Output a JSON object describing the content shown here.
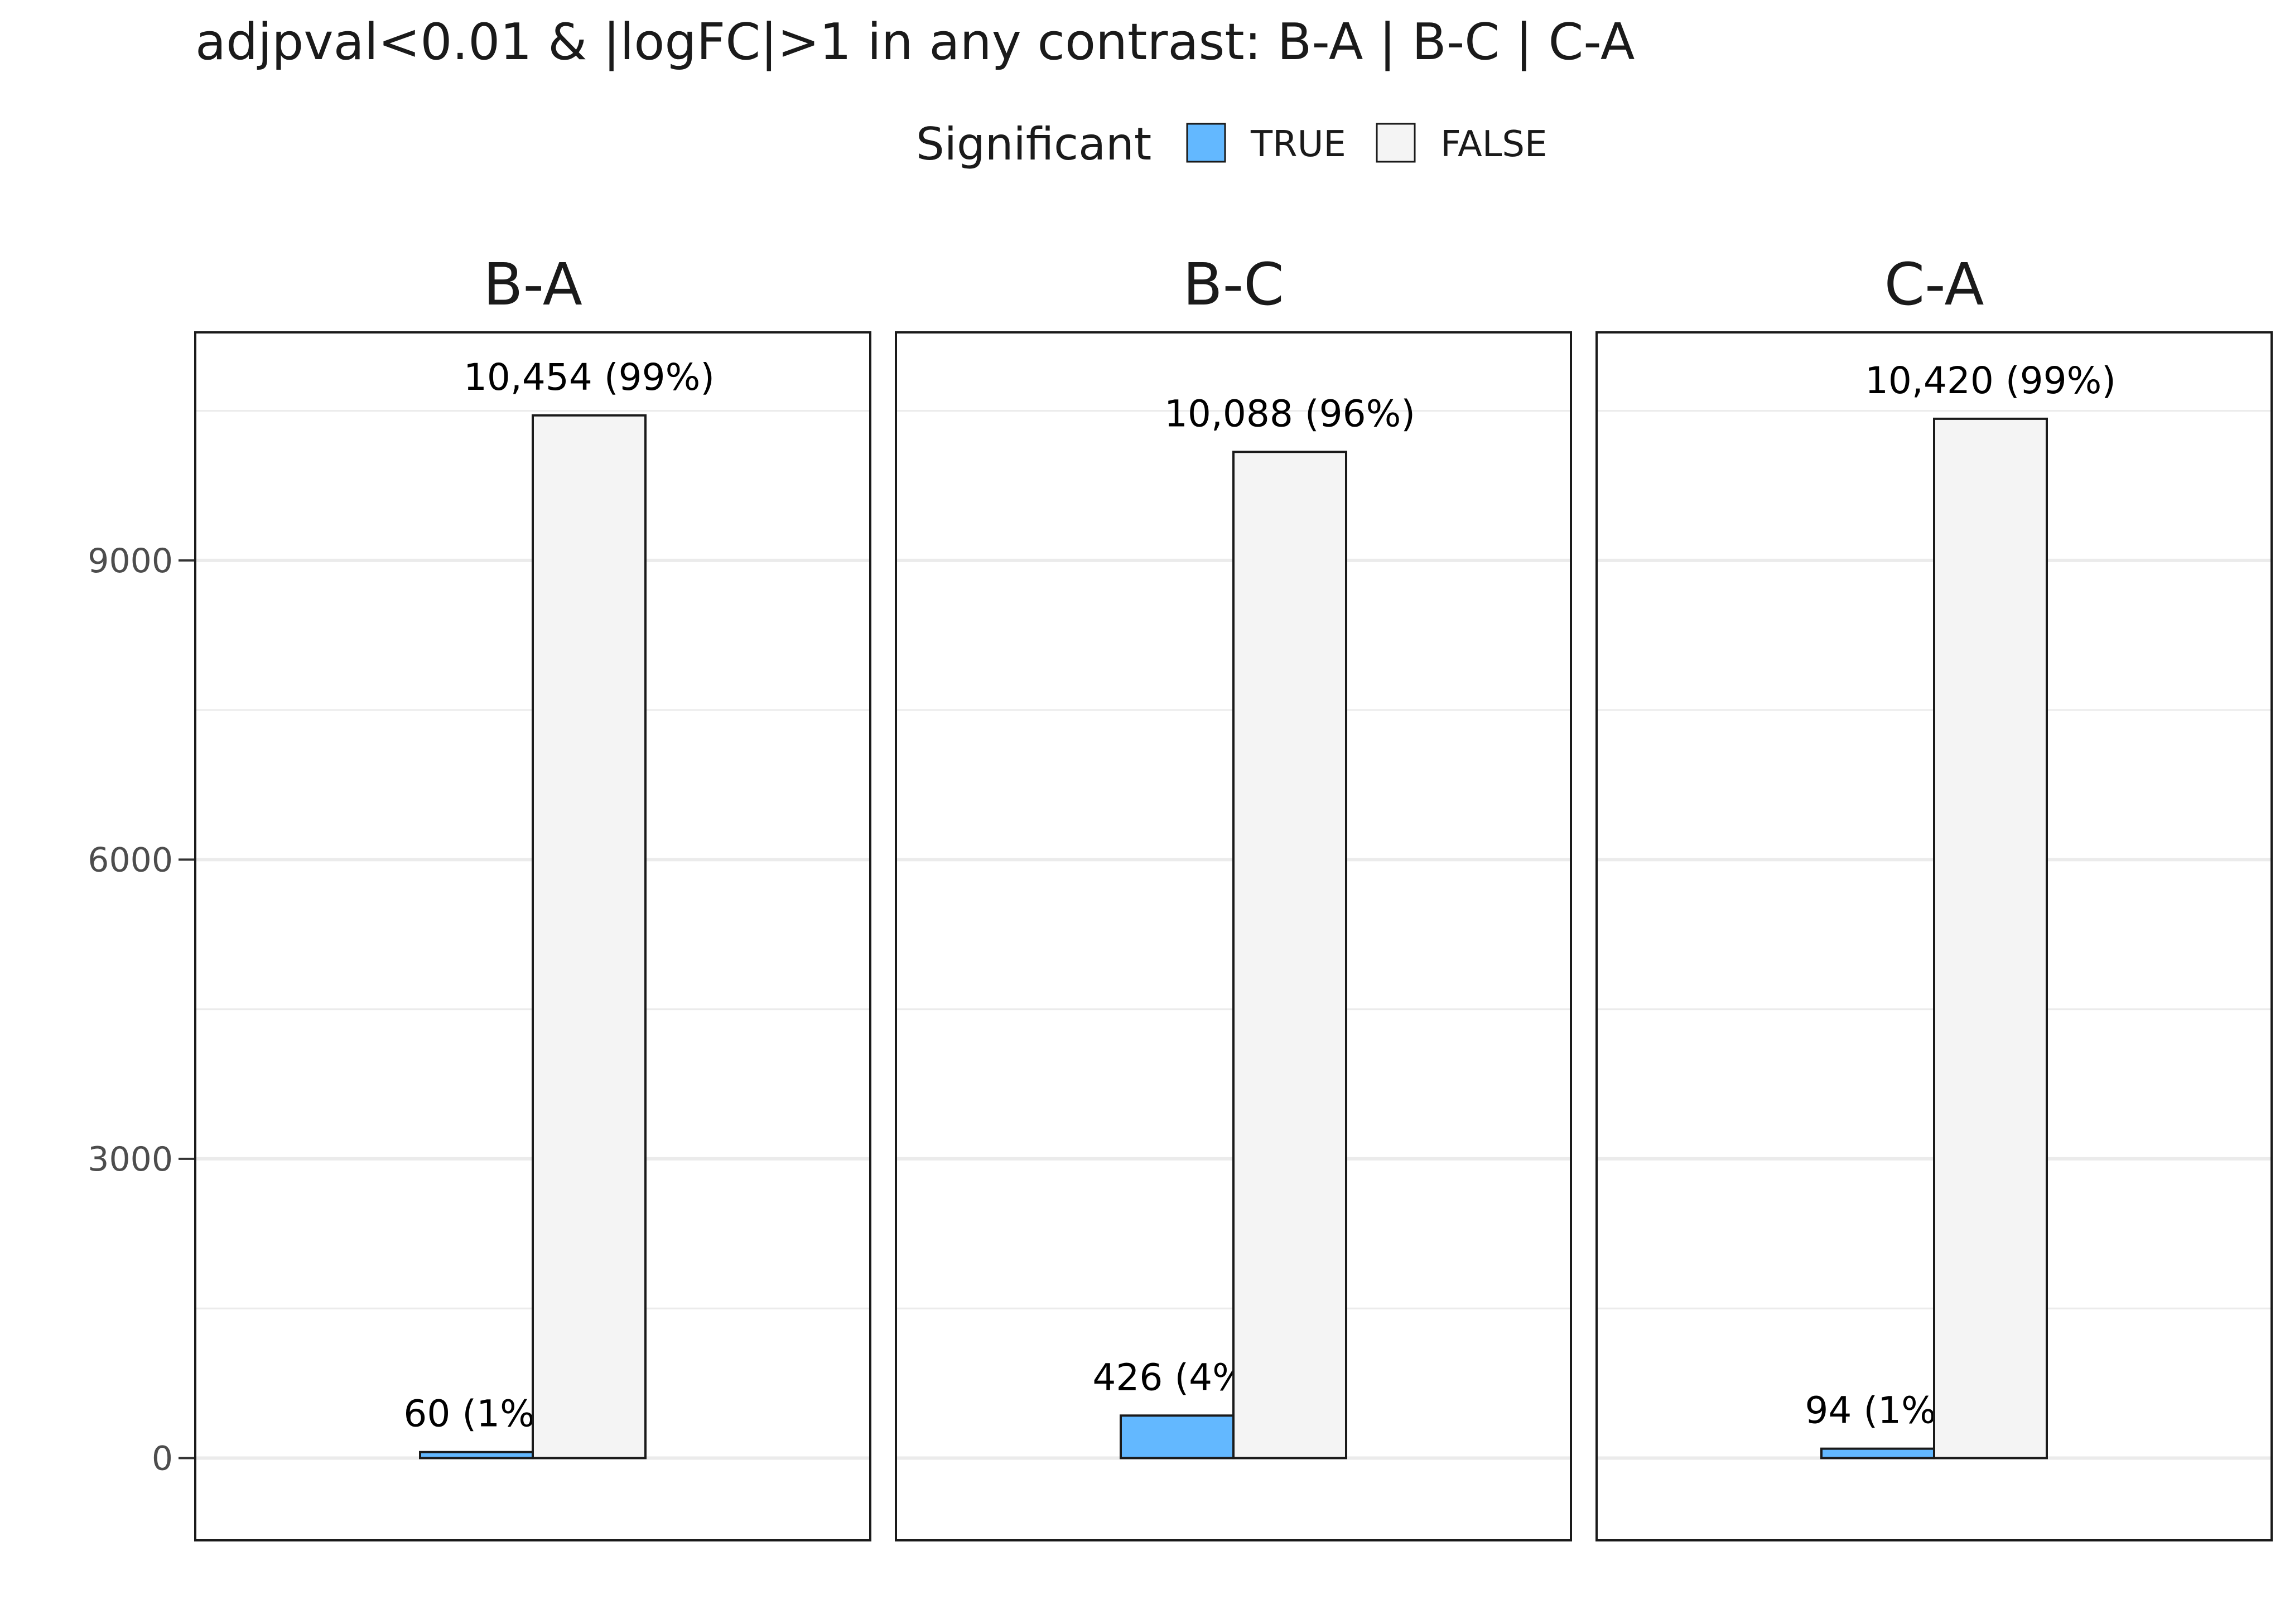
{
  "chart_data": {
    "type": "bar",
    "title": "adjpval<0.01 & |logFC|>1 in any contrast: B-A | B-C | C-A",
    "legend": {
      "title": "Significant",
      "position": "top",
      "entries": [
        {
          "label": "TRUE",
          "color": "#63B8FF"
        },
        {
          "label": "FALSE",
          "color": "#F4F4F4"
        }
      ]
    },
    "facets": [
      "B-A",
      "B-C",
      "C-A"
    ],
    "series": [
      {
        "name": "TRUE",
        "color": "#63B8FF",
        "values": [
          60,
          426,
          94
        ],
        "labels": [
          "60 (1%)",
          "426 (4%)",
          "94 (1%)"
        ]
      },
      {
        "name": "FALSE",
        "color": "#F4F4F4",
        "values": [
          10454,
          10088,
          10420
        ],
        "labels": [
          "10,454 (99%)",
          "10,088 (96%)",
          "10,420 (99%)"
        ]
      }
    ],
    "y_ticks": [
      0,
      3000,
      6000,
      9000
    ],
    "y_tick_labels": [
      "0",
      "3000",
      "6000",
      "9000"
    ],
    "ylim": [
      -825,
      11286
    ],
    "xlabel": "",
    "ylabel": "",
    "grid": true
  }
}
